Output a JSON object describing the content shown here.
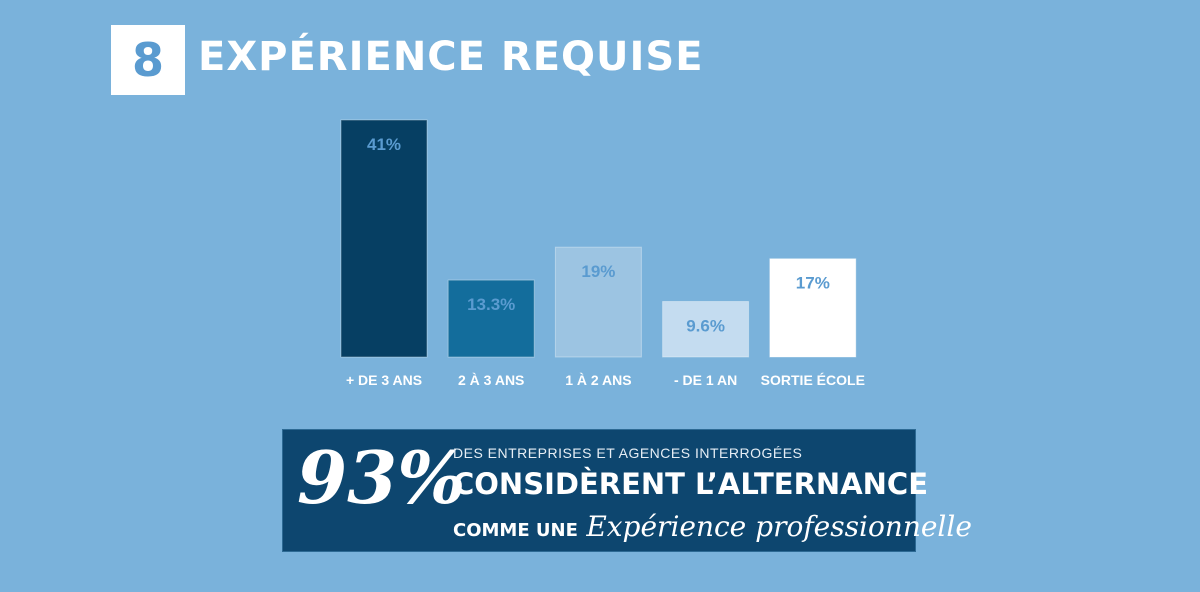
{
  "header": {
    "number": "8",
    "title": "EXPÉRIENCE REQUISE"
  },
  "chart_data": {
    "type": "bar",
    "categories": [
      "+ DE 3 ANS",
      "2 À 3 ANS",
      "1 À 2 ANS",
      "- DE 1 AN",
      "SORTIE ÉCOLE"
    ],
    "values": [
      41,
      13.3,
      19,
      9.6,
      17
    ],
    "value_labels": [
      "41%",
      "13.3%",
      "19%",
      "9.6%",
      "17%"
    ],
    "bar_colors": [
      "#063f63",
      "#136d9c",
      "#9cc4e2",
      "#c4dcf0",
      "#ffffff"
    ],
    "value_label_color": "#5a9bd0",
    "title": "",
    "xlabel": "",
    "ylabel": "",
    "ylim": [
      0,
      41
    ],
    "grid": false,
    "legend": "none"
  },
  "banner": {
    "big_value": "93%",
    "line1": "DES ENTREPRISES ET AGENCES INTERROGÉES",
    "line2": "CONSIDÈRENT L’ALTERNANCE",
    "line3_lead": "COMME UNE",
    "line3_script": "Expérience professionnelle"
  },
  "colors": {
    "background": "#7ab2db",
    "banner_bg": "#0d466f",
    "badge_text": "#5a9bd0"
  }
}
